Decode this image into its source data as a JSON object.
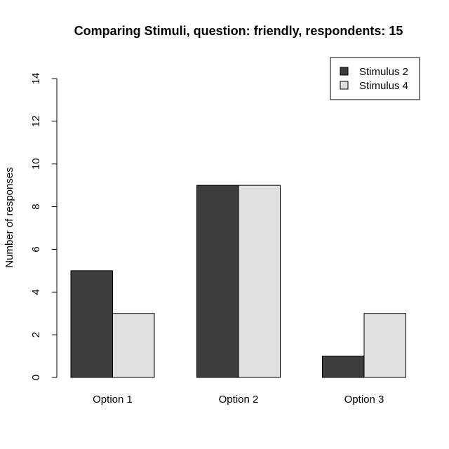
{
  "chart_data": {
    "type": "bar",
    "title": "Comparing Stimuli, question: friendly, respondents: 15",
    "xlabel": "",
    "ylabel": "Number of responses",
    "categories": [
      "Option 1",
      "Option 2",
      "Option 3"
    ],
    "series": [
      {
        "name": "Stimulus 2",
        "values": [
          5,
          9,
          1
        ],
        "color": "#3d3d3d"
      },
      {
        "name": "Stimulus 4",
        "values": [
          3,
          9,
          3
        ],
        "color": "#e0e0e0"
      }
    ],
    "ylim": [
      0,
      14
    ],
    "yticks": [
      "0",
      "2",
      "4",
      "6",
      "8",
      "10",
      "12",
      "14"
    ],
    "grid": false,
    "legend_position": "top-right",
    "bar_border_color": "#000000"
  }
}
